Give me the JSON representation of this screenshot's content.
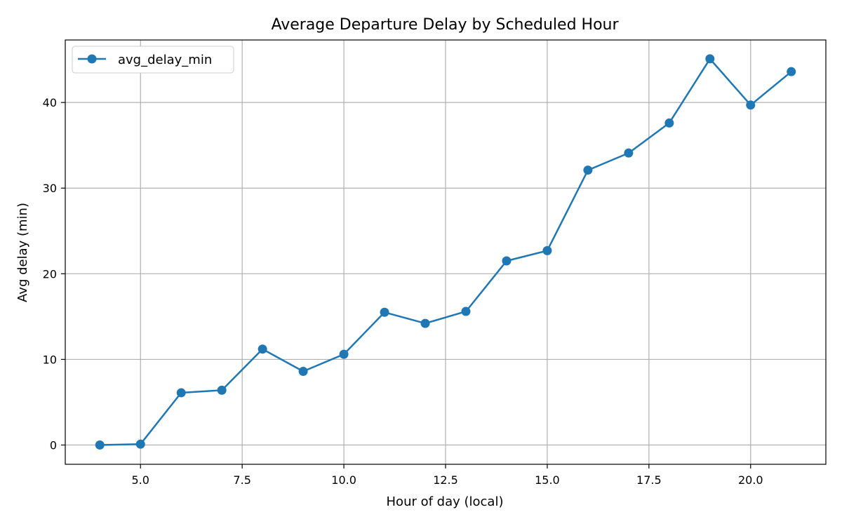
{
  "chart_data": {
    "type": "line",
    "title": "Average Departure Delay by Scheduled Hour",
    "xlabel": "Hour of day (local)",
    "ylabel": "Avg delay (min)",
    "xlim": [
      3.15,
      21.85
    ],
    "ylim": [
      -2.25,
      47.3
    ],
    "x_ticks": [
      5.0,
      7.5,
      10.0,
      12.5,
      15.0,
      17.5,
      20.0
    ],
    "x_tick_labels": [
      "5.0",
      "7.5",
      "10.0",
      "12.5",
      "15.0",
      "17.5",
      "20.0"
    ],
    "y_ticks": [
      0,
      10,
      20,
      30,
      40
    ],
    "y_tick_labels": [
      "0",
      "10",
      "20",
      "30",
      "40"
    ],
    "grid": true,
    "legend_position": "top-left",
    "colors": {
      "series": "#1f77b4"
    },
    "series": [
      {
        "name": "avg_delay_min",
        "x": [
          4,
          5,
          6,
          7,
          8,
          9,
          10,
          11,
          12,
          13,
          14,
          15,
          16,
          17,
          18,
          19,
          20,
          21
        ],
        "values": [
          0.0,
          0.1,
          6.1,
          6.4,
          11.2,
          8.6,
          10.6,
          15.5,
          14.2,
          15.6,
          21.5,
          22.7,
          32.1,
          34.1,
          37.6,
          45.1,
          39.7,
          43.6
        ]
      }
    ]
  }
}
